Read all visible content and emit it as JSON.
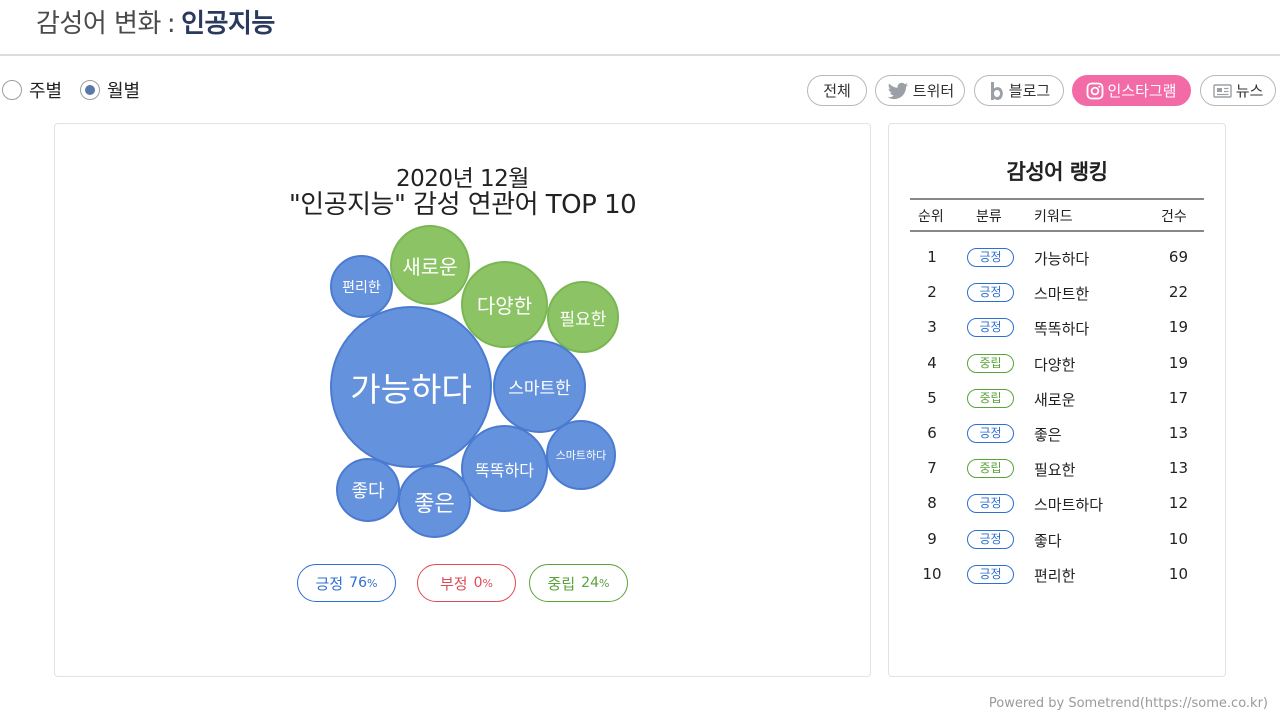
{
  "header": {
    "title_prefix": "감성어 변화",
    "separator": ":",
    "keyword": "인공지능"
  },
  "period": {
    "options": [
      {
        "label": "주별",
        "selected": false
      },
      {
        "label": "월별",
        "selected": true
      }
    ]
  },
  "sources": {
    "tabs": [
      {
        "label": "전체",
        "icon": "",
        "active": false
      },
      {
        "label": "트위터",
        "icon": "twitter-icon",
        "active": false
      },
      {
        "label": "블로그",
        "icon": "blog-icon",
        "active": false
      },
      {
        "label": "인스타그램",
        "icon": "instagram-icon",
        "active": true
      },
      {
        "label": "뉴스",
        "icon": "news-icon",
        "active": false
      }
    ]
  },
  "chart": {
    "title_line1": "2020년 12월",
    "title_line2": "\"인공지능\" 감성 연관어 TOP 10"
  },
  "chart_data": {
    "type": "bubble",
    "title": "\"인공지능\" 감성 연관어 TOP 10",
    "subtitle": "2020년 12월",
    "bubbles": [
      {
        "label": "가능하다",
        "category": "긍정"
      },
      {
        "label": "스마트한",
        "category": "긍정"
      },
      {
        "label": "똑똑하다",
        "category": "긍정"
      },
      {
        "label": "다양한",
        "category": "중립"
      },
      {
        "label": "새로운",
        "category": "중립"
      },
      {
        "label": "좋은",
        "category": "긍정"
      },
      {
        "label": "필요한",
        "category": "중립"
      },
      {
        "label": "스마트하다",
        "category": "긍정"
      },
      {
        "label": "좋다",
        "category": "긍정"
      },
      {
        "label": "편리한",
        "category": "긍정"
      }
    ],
    "legend": [
      {
        "label": "긍정",
        "value": 76,
        "unit": "%"
      },
      {
        "label": "부정",
        "value": 0,
        "unit": "%"
      },
      {
        "label": "중립",
        "value": 24,
        "unit": "%"
      }
    ]
  },
  "legend_pills": [
    {
      "label": "긍정",
      "value": "76",
      "unit": "%"
    },
    {
      "label": "부정",
      "value": "0",
      "unit": "%"
    },
    {
      "label": "중립",
      "value": "24",
      "unit": "%"
    }
  ],
  "ranking": {
    "title": "감성어 랭킹",
    "headers": {
      "rank": "순위",
      "category": "분류",
      "keyword": "키워드",
      "count": "건수"
    },
    "rows": [
      {
        "rank": "1",
        "category": "긍정",
        "keyword": "가능하다",
        "count": "69"
      },
      {
        "rank": "2",
        "category": "긍정",
        "keyword": "스마트한",
        "count": "22"
      },
      {
        "rank": "3",
        "category": "긍정",
        "keyword": "똑똑하다",
        "count": "19"
      },
      {
        "rank": "4",
        "category": "중립",
        "keyword": "다양한",
        "count": "19"
      },
      {
        "rank": "5",
        "category": "중립",
        "keyword": "새로운",
        "count": "17"
      },
      {
        "rank": "6",
        "category": "긍정",
        "keyword": "좋은",
        "count": "13"
      },
      {
        "rank": "7",
        "category": "중립",
        "keyword": "필요한",
        "count": "13"
      },
      {
        "rank": "8",
        "category": "긍정",
        "keyword": "스마트하다",
        "count": "12"
      },
      {
        "rank": "9",
        "category": "긍정",
        "keyword": "좋다",
        "count": "10"
      },
      {
        "rank": "10",
        "category": "긍정",
        "keyword": "편리한",
        "count": "10"
      }
    ]
  },
  "colors": {
    "positive": "#2e6fd0",
    "negative": "#e04a55",
    "neutral": "#5aa33a",
    "active_tab": "#f26aa6",
    "bubble_positive": "#6592dc",
    "bubble_neutral": "#8cc465"
  },
  "footer": {
    "credit": "Powered by Sometrend(https://some.co.kr)"
  }
}
